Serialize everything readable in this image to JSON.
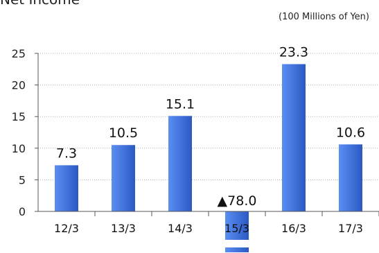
{
  "header": {
    "cut_title": "Net Income",
    "unit": "(100 Millions of Yen)"
  },
  "colors": {
    "bar_light": "#5a8ff2",
    "bar_dark": "#2c58c4",
    "axis": "#555555",
    "grid": "#b0b0b0"
  },
  "chart_data": {
    "type": "bar",
    "categories": [
      "12/3",
      "13/3",
      "14/3",
      "15/3",
      "16/3",
      "17/3"
    ],
    "values": [
      7.3,
      10.5,
      15.1,
      -78.0,
      23.3,
      10.6
    ],
    "data_labels": [
      "7.3",
      "10.5",
      "15.1",
      "▲78.0",
      "23.3",
      "10.6"
    ],
    "ylim": [
      0,
      25
    ],
    "yticks": [
      0,
      5,
      10,
      15,
      20,
      25
    ],
    "grid": true,
    "axis_break_on_negative": true
  }
}
